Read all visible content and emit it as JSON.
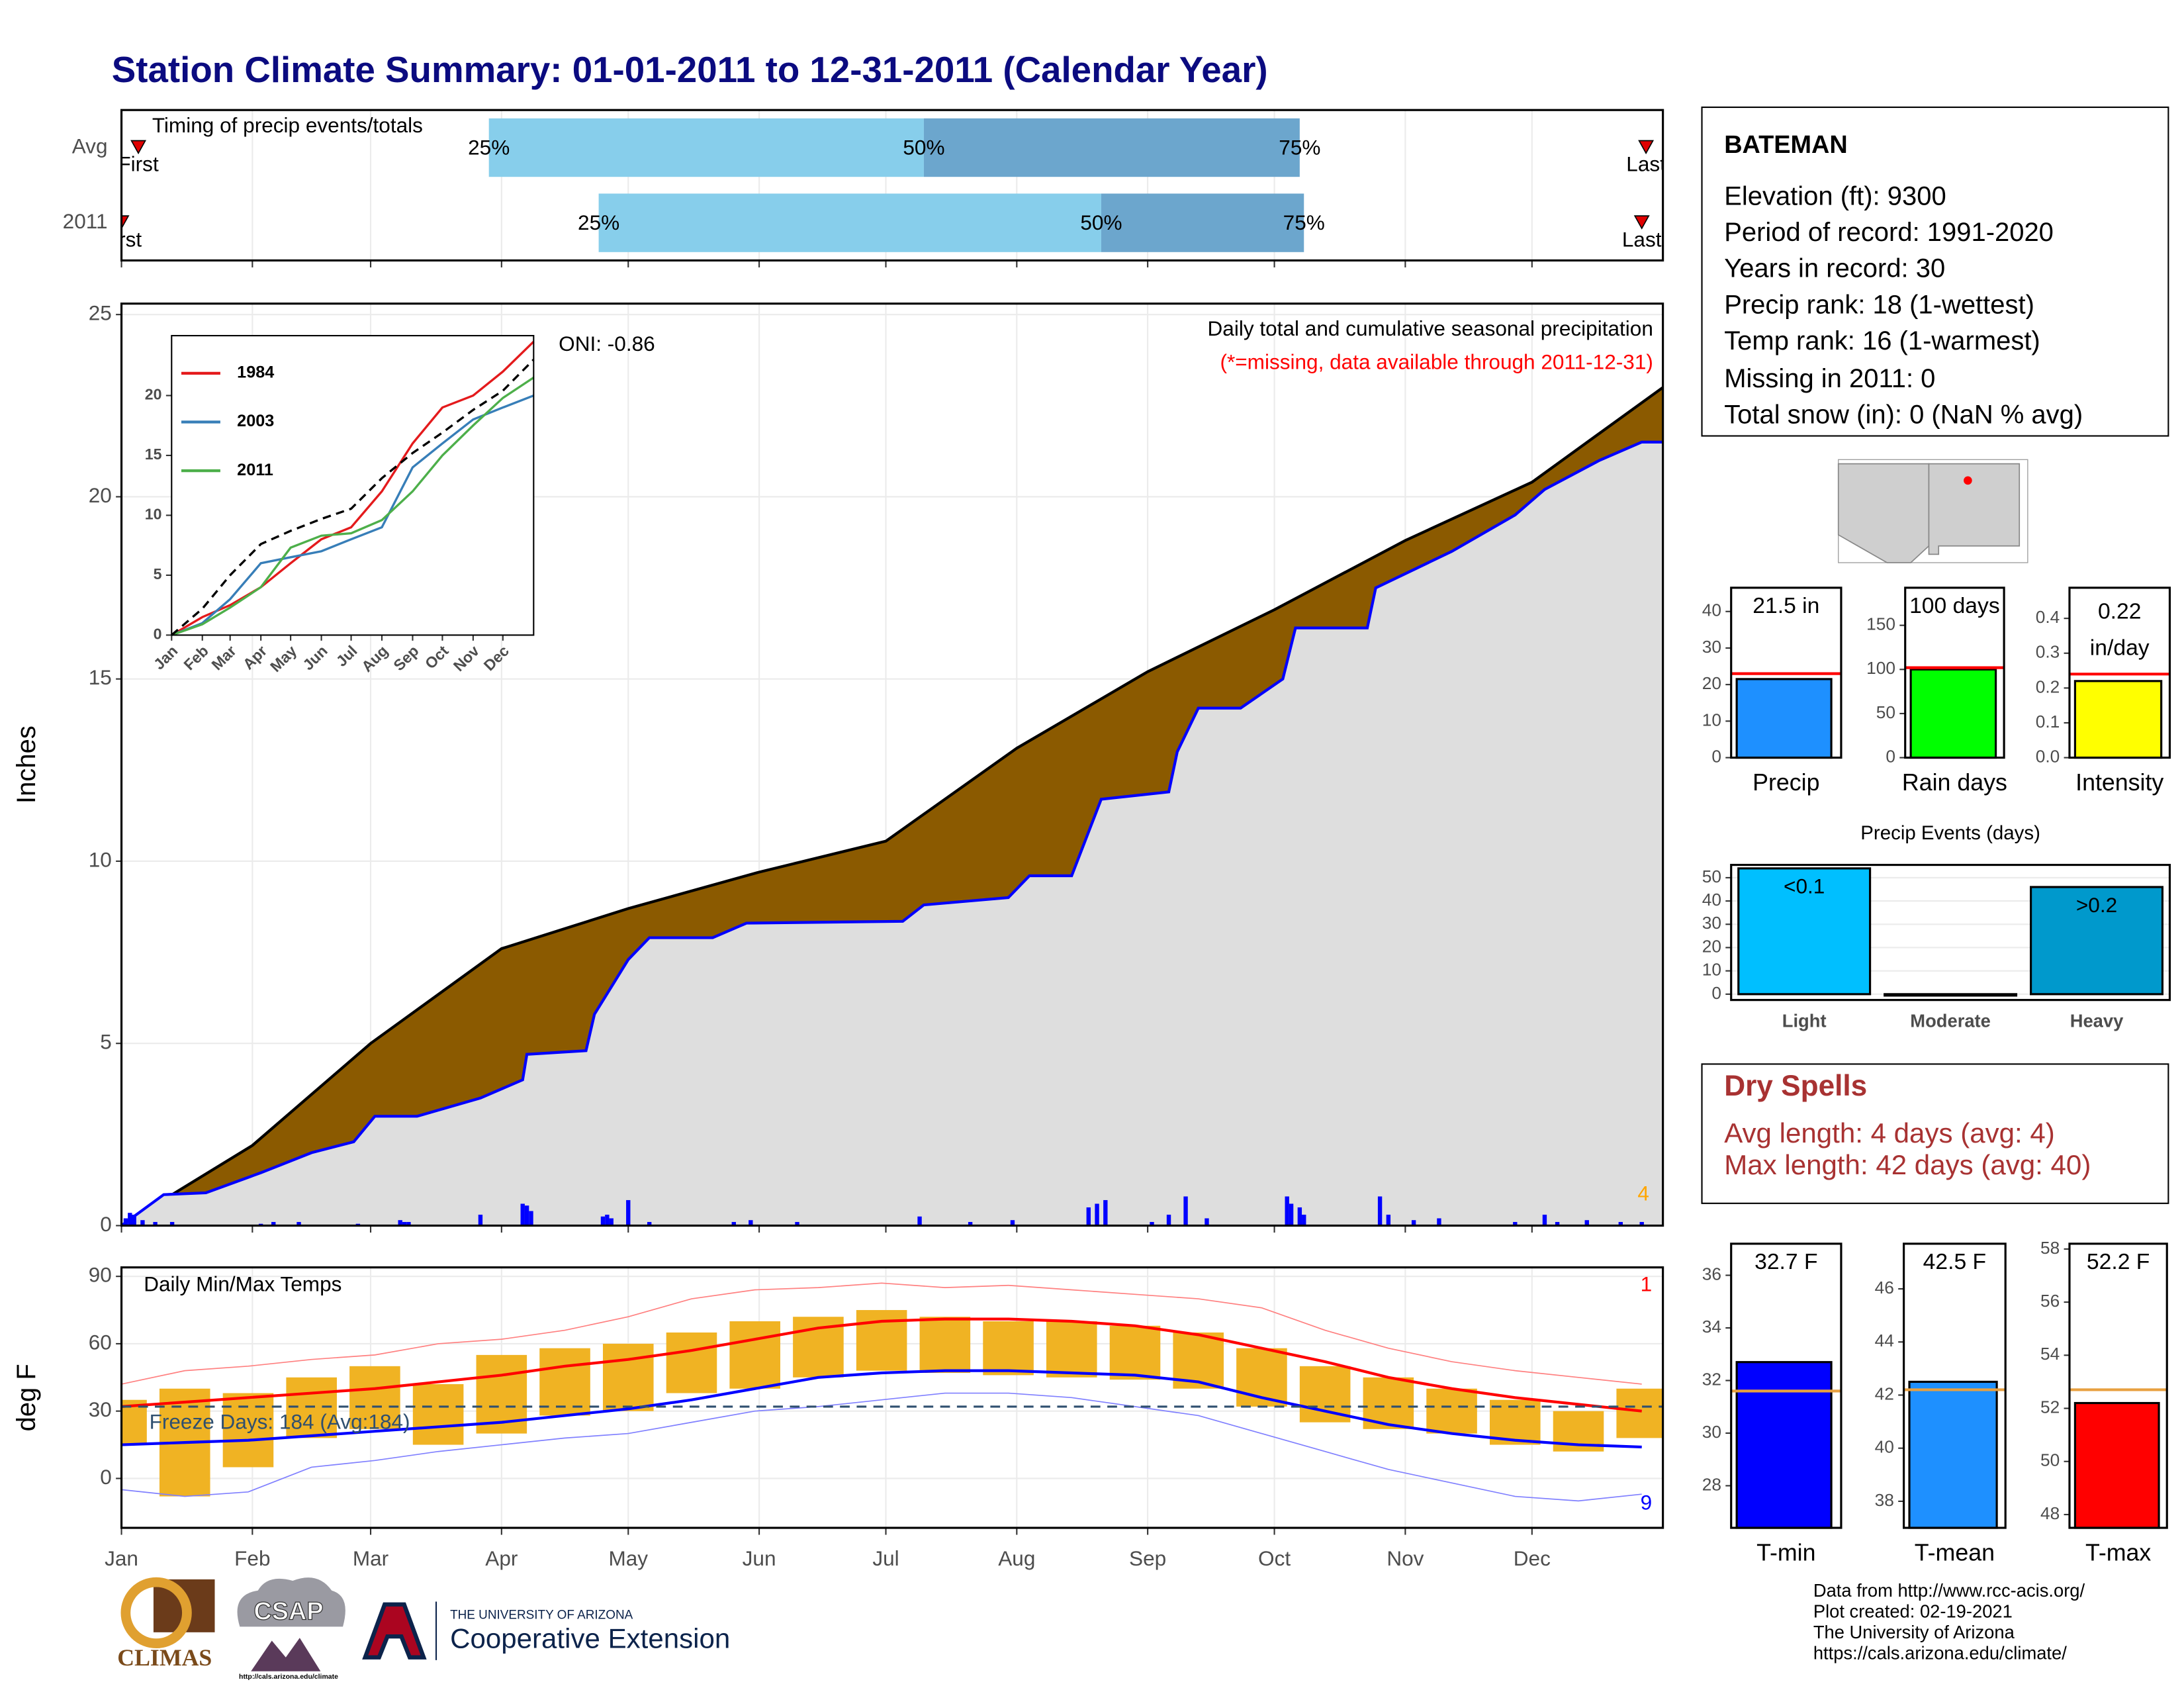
{
  "title": "Station Climate Summary: 01-01-2011 to 12-31-2011 (Calendar Year)",
  "station": {
    "name": "BATEMAN",
    "lines": [
      "Elevation (ft): 9300",
      "Period of record: 1991-2020",
      "Years in record: 30",
      "Precip rank: 18 (1-wettest)",
      "Temp rank: 16 (1-warmest)",
      "Missing in 2011: 0",
      "Total snow (in): 0 (NaN % avg)"
    ]
  },
  "dry_spells": {
    "title": "Dry Spells",
    "lines": [
      "Avg length: 4 days (avg: 4)",
      "Max length: 42 days (avg: 40)"
    ]
  },
  "footer": [
    "Data from http://www.rcc-acis.org/",
    "Plot created: 02-19-2021",
    "The University of Arizona",
    "https://cals.arizona.edu/climate/"
  ],
  "logos": {
    "climas": "CLIMAS",
    "csap": "CSAP",
    "csap_url": "http://cals.arizona.edu/climate",
    "university": "THE UNIVERSITY OF ARIZONA",
    "extension": "Cooperative Extension"
  },
  "chart_data": [
    {
      "type": "timing",
      "title": "Timing of precip events/totals",
      "xlim": [
        0,
        365
      ],
      "quantile_labels": [
        "25%",
        "50%",
        "75%"
      ],
      "first_label": "First",
      "last_label": "Last",
      "colors": [
        "#87ceeb",
        "#6ca6cd"
      ],
      "marker_color": "#e00000",
      "series": [
        {
          "name": "Avg",
          "first": 4,
          "q25": 87,
          "q50": 190,
          "q75": 279,
          "last": 361
        },
        {
          "name": "2011",
          "first": 0,
          "q25": 113,
          "q50": 232,
          "q75": 280,
          "last": 360
        }
      ]
    },
    {
      "type": "cumulative",
      "ylabel": "Inches",
      "title": "Daily total and cumulative seasonal precipitation",
      "subtitle": "(*=missing, data available through 2011-12-31)",
      "annotation": "ONI: -0.86",
      "count_label": "4",
      "xlim": [
        0,
        365
      ],
      "ylim": [
        0,
        25.3
      ],
      "yticks": [
        0,
        5,
        10,
        15,
        20,
        25
      ],
      "grid": true,
      "series": [
        {
          "color": "#8b5a00",
          "line_color": "#000000",
          "x": [
            0,
            31,
            59,
            90,
            120,
            151,
            181,
            212,
            243,
            273,
            304,
            334,
            365
          ],
          "values": [
            0,
            2.2,
            5.0,
            7.6,
            8.7,
            9.7,
            10.55,
            13.1,
            15.2,
            16.9,
            18.8,
            20.4,
            23.0
          ]
        },
        {
          "color": "#dedede",
          "line_color": "#0000ff",
          "x": [
            0,
            10,
            20,
            33,
            45,
            55,
            60,
            70,
            85,
            95,
            96,
            110,
            112,
            120,
            125,
            140,
            148,
            185,
            190,
            210,
            215,
            225,
            228,
            232,
            248,
            250,
            255,
            265,
            275,
            278,
            295,
            297,
            315,
            330,
            337,
            350,
            360,
            365
          ],
          "values": [
            0,
            0.85,
            0.9,
            1.45,
            2.0,
            2.3,
            3.0,
            3.0,
            3.5,
            4.0,
            4.7,
            4.8,
            5.8,
            7.3,
            7.9,
            7.9,
            8.3,
            8.35,
            8.8,
            9.0,
            9.6,
            9.6,
            10.5,
            11.7,
            11.9,
            13.0,
            14.2,
            14.2,
            15.0,
            16.4,
            16.4,
            17.5,
            18.5,
            19.5,
            20.2,
            21.0,
            21.5,
            21.5
          ]
        }
      ],
      "daily": {
        "color": "#0000ff",
        "x": [
          1,
          2,
          3,
          5,
          8,
          12,
          33,
          36,
          42,
          56,
          66,
          67,
          68,
          85,
          95,
          96,
          97,
          114,
          115,
          116,
          120,
          125,
          145,
          149,
          160,
          189,
          201,
          211,
          229,
          231,
          233,
          244,
          248,
          252,
          257,
          276,
          277,
          279,
          280,
          298,
          300,
          306,
          312,
          330,
          337,
          340,
          347,
          355,
          360
        ],
        "values": [
          0.2,
          0.35,
          0.3,
          0.15,
          0.1,
          0.1,
          0.05,
          0.1,
          0.1,
          0.05,
          0.15,
          0.1,
          0.1,
          0.3,
          0.6,
          0.55,
          0.4,
          0.25,
          0.3,
          0.2,
          0.7,
          0.1,
          0.1,
          0.15,
          0.1,
          0.25,
          0.1,
          0.15,
          0.5,
          0.6,
          0.7,
          0.1,
          0.3,
          0.8,
          0.2,
          0.8,
          0.6,
          0.5,
          0.3,
          0.8,
          0.3,
          0.15,
          0.2,
          0.1,
          0.3,
          0.1,
          0.15,
          0.1,
          0.1
        ]
      }
    },
    {
      "type": "line",
      "xlim": [
        0,
        365
      ],
      "ylim": [
        0,
        25
      ],
      "yticks": [
        0,
        5,
        10,
        15,
        20
      ],
      "xticks": [
        {
          "value": 0,
          "label": "Jan"
        },
        {
          "value": 31,
          "label": "Feb"
        },
        {
          "value": 59,
          "label": "Mar"
        },
        {
          "value": 90,
          "label": "Apr"
        },
        {
          "value": 120,
          "label": "May"
        },
        {
          "value": 151,
          "label": "Jun"
        },
        {
          "value": 181,
          "label": "Jul"
        },
        {
          "value": 212,
          "label": "Aug"
        },
        {
          "value": 243,
          "label": "Sep"
        },
        {
          "value": 273,
          "label": "Oct"
        },
        {
          "value": 304,
          "label": "Nov"
        },
        {
          "value": 334,
          "label": "Dec"
        }
      ],
      "x": [
        0,
        31,
        59,
        90,
        120,
        151,
        181,
        212,
        243,
        273,
        304,
        334,
        365
      ],
      "series": [
        {
          "name": "1984",
          "color": "#e41a1c",
          "values": [
            0,
            1.5,
            2.5,
            4,
            6,
            8,
            9,
            12,
            16,
            19,
            20,
            22,
            24.5
          ]
        },
        {
          "name": "2003",
          "color": "#377eb8",
          "values": [
            0,
            1,
            3,
            6,
            6.5,
            7,
            8,
            9,
            14,
            16,
            18,
            19,
            20
          ]
        },
        {
          "name": "2011",
          "color": "#4daf4a",
          "values": [
            0,
            0.9,
            2.3,
            4.0,
            7.3,
            8.3,
            8.5,
            9.6,
            12.0,
            15.0,
            17.5,
            19.8,
            21.5
          ]
        }
      ],
      "average": {
        "color": "#000000",
        "values": [
          0,
          2.2,
          5.0,
          7.6,
          8.7,
          9.7,
          10.55,
          13.1,
          15.2,
          16.9,
          18.8,
          20.4,
          23.0
        ]
      }
    },
    {
      "type": "temperature",
      "title": "Daily Min/Max Temps",
      "ylabel": "deg F",
      "xlim": [
        0,
        365
      ],
      "xticks": [
        {
          "value": 0,
          "label": "Jan"
        },
        {
          "value": 31,
          "label": "Feb"
        },
        {
          "value": 59,
          "label": "Mar"
        },
        {
          "value": 90,
          "label": "Apr"
        },
        {
          "value": 120,
          "label": "May"
        },
        {
          "value": 151,
          "label": "Jun"
        },
        {
          "value": 181,
          "label": "Jul"
        },
        {
          "value": 212,
          "label": "Aug"
        },
        {
          "value": 243,
          "label": "Sep"
        },
        {
          "value": 273,
          "label": "Oct"
        },
        {
          "value": 304,
          "label": "Nov"
        },
        {
          "value": 334,
          "label": "Dec"
        }
      ],
      "ylim": [
        -22,
        94
      ],
      "yticks": [
        0,
        30,
        60,
        90
      ],
      "grid": true,
      "x": [
        0,
        15,
        30,
        45,
        60,
        75,
        90,
        105,
        120,
        135,
        150,
        165,
        180,
        195,
        210,
        225,
        240,
        255,
        270,
        285,
        300,
        315,
        330,
        345,
        360
      ],
      "range_bars": {
        "color": "#f0b323",
        "low": [
          15,
          -8,
          5,
          18,
          22,
          15,
          20,
          28,
          30,
          38,
          40,
          45,
          48,
          47,
          46,
          45,
          44,
          40,
          32,
          25,
          22,
          20,
          15,
          12,
          18
        ],
        "high": [
          35,
          40,
          38,
          45,
          50,
          42,
          55,
          58,
          60,
          65,
          70,
          72,
          75,
          72,
          70,
          70,
          68,
          65,
          58,
          50,
          45,
          40,
          35,
          30,
          40
        ]
      },
      "series": [
        {
          "color": "#ff8080",
          "line_width": 0.8,
          "values": [
            42,
            48,
            50,
            53,
            55,
            60,
            62,
            66,
            72,
            80,
            84,
            85,
            87,
            85,
            86,
            84,
            82,
            80,
            76,
            66,
            58,
            52,
            48,
            45,
            42
          ]
        },
        {
          "color": "#8080ff",
          "line_width": 0.8,
          "values": [
            -5,
            -8,
            -6,
            5,
            8,
            12,
            15,
            18,
            20,
            25,
            30,
            32,
            35,
            38,
            38,
            36,
            32,
            28,
            20,
            12,
            4,
            -2,
            -8,
            -10,
            -7
          ]
        },
        {
          "color": "#ff0000",
          "line_width": 2,
          "values": [
            32,
            34,
            36,
            38,
            40,
            43,
            46,
            50,
            53,
            57,
            62,
            67,
            70,
            71,
            71,
            70,
            68,
            64,
            58,
            52,
            45,
            40,
            36,
            33,
            30
          ]
        },
        {
          "color": "#0000ff",
          "line_width": 2,
          "values": [
            15,
            16,
            17,
            19,
            21,
            23,
            25,
            28,
            31,
            35,
            40,
            45,
            47,
            48,
            48,
            47,
            46,
            43,
            36,
            30,
            24,
            20,
            17,
            15,
            14
          ]
        }
      ],
      "freeze_line": 32,
      "freeze_label": "Freeze Days: 184 (Avg:184)",
      "annotations": [
        {
          "text": "1",
          "color": "#ff0000"
        },
        {
          "text": "9",
          "color": "#0000ff"
        }
      ]
    },
    {
      "type": "bar",
      "categories": [
        "Precip"
      ],
      "values": [
        21.5
      ],
      "value_labels": [
        "21.5 in"
      ],
      "color": "#1e90ff",
      "average": 23.0,
      "average_color": "#ff0000",
      "ylim": [
        0,
        46.5
      ],
      "yticks": [
        0,
        10,
        20,
        30,
        40
      ]
    },
    {
      "type": "bar",
      "categories": [
        "Rain days"
      ],
      "values": [
        100
      ],
      "value_labels": [
        "100 days"
      ],
      "color": "#00ff00",
      "average": 102,
      "average_color": "#ff0000",
      "ylim": [
        0,
        192.6
      ],
      "yticks": [
        0,
        50,
        100,
        150
      ]
    },
    {
      "type": "bar",
      "categories": [
        "Intensity"
      ],
      "values": [
        0.22
      ],
      "value_labels": [
        "0.22"
      ],
      "unit_label": "in/day",
      "color": "#ffff00",
      "average": 0.24,
      "average_color": "#ff0000",
      "ylim": [
        0,
        0.488
      ],
      "yticks": [
        {
          "value": 0,
          "label": "0.0"
        },
        0.1,
        0.2,
        0.3,
        0.4
      ]
    },
    {
      "type": "bar",
      "title": "Precip Events (days)",
      "categories": [
        "Light",
        "Moderate",
        "Heavy"
      ],
      "values": [
        54,
        0,
        46
      ],
      "bar_labels": [
        "<0.1",
        null,
        ">0.2"
      ],
      "colors": [
        "#00bfff",
        "#00bfff",
        "#0099cc"
      ],
      "ylim": [
        -2.5,
        55.5
      ],
      "yticks": [
        0,
        10,
        20,
        30,
        40,
        50
      ],
      "grid": true
    },
    {
      "type": "bar",
      "categories": [
        "T-min"
      ],
      "values": [
        32.7
      ],
      "value_labels": [
        "32.7 F"
      ],
      "color": "#0000ff",
      "average": 31.6,
      "average_color": "#e8a040",
      "ylim": [
        26.4,
        37.2
      ],
      "yticks": [
        28,
        30,
        32,
        34,
        36
      ]
    },
    {
      "type": "bar",
      "categories": [
        "T-mean"
      ],
      "values": [
        42.5
      ],
      "value_labels": [
        "42.5 F"
      ],
      "color": "#1e90ff",
      "average": 42.2,
      "average_color": "#e8a040",
      "ylim": [
        37.0,
        47.7
      ],
      "yticks": [
        38,
        40,
        42,
        44,
        46
      ]
    },
    {
      "type": "bar",
      "categories": [
        "T-max"
      ],
      "values": [
        52.2
      ],
      "value_labels": [
        "52.2 F"
      ],
      "color": "#ff0000",
      "average": 52.7,
      "average_color": "#e8a040",
      "ylim": [
        47.5,
        58.2
      ],
      "yticks": [
        48,
        50,
        52,
        54,
        56,
        58
      ]
    }
  ]
}
